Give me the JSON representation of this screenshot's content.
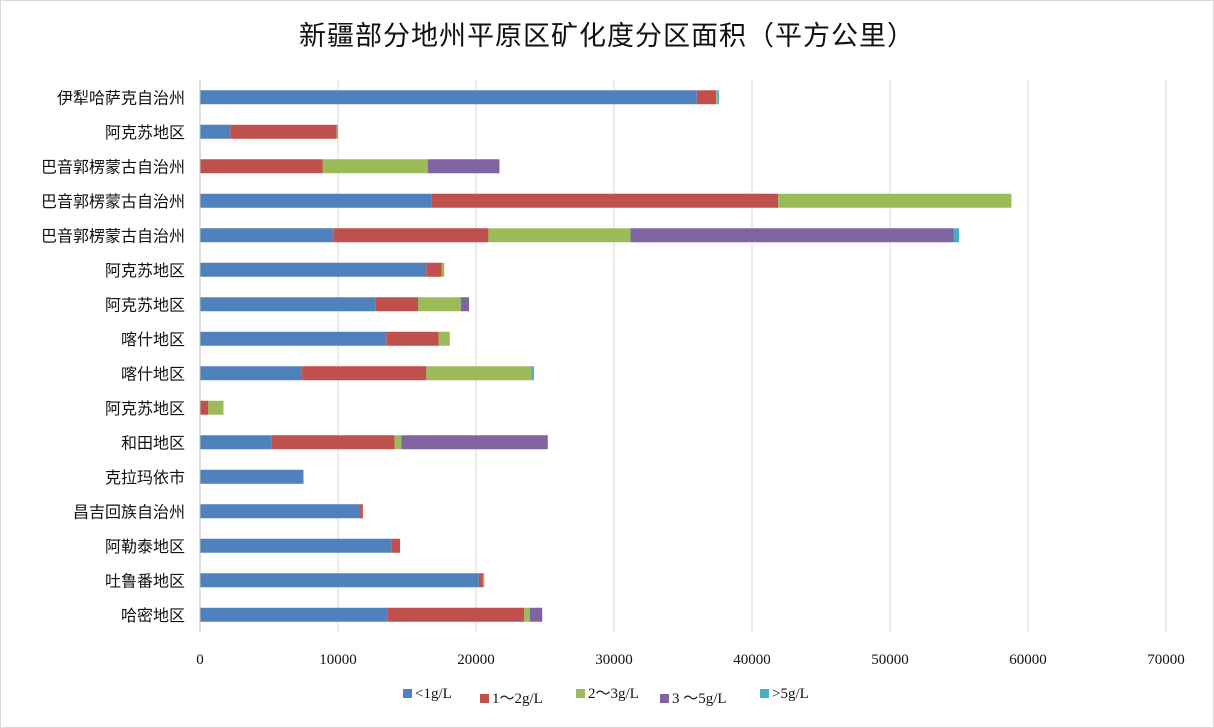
{
  "chart_data": {
    "type": "bar",
    "orientation": "horizontal",
    "stacked": true,
    "title": "新疆部分地州平原区矿化度分区面积（平方公里）",
    "categories": [
      "伊犁哈萨克自治州",
      "阿克苏地区",
      "巴音郭楞蒙古自治州",
      "巴音郭楞蒙古自治州",
      "巴音郭楞蒙古自治州",
      "阿克苏地区",
      "阿克苏地区",
      "喀什地区",
      "喀什地区",
      "阿克苏地区",
      "和田地区",
      "克拉玛依市",
      "昌吉回族自治州",
      "阿勒泰地区",
      "吐鲁番地区",
      "哈密地区"
    ],
    "series": [
      {
        "name": "<1g/L",
        "color": "#4f81bd",
        "values": [
          36000,
          2200,
          0,
          16800,
          9700,
          16400,
          12700,
          13500,
          7400,
          0,
          5200,
          7500,
          11600,
          13900,
          20200,
          13600
        ]
      },
      {
        "name": "1～2g/L",
        "color": "#c0504d",
        "values": [
          1400,
          7700,
          8900,
          25100,
          11200,
          1100,
          3100,
          3800,
          9000,
          600,
          8900,
          0,
          200,
          600,
          300,
          9900
        ]
      },
      {
        "name": "2～3g/L",
        "color": "#9bbb59",
        "values": [
          100,
          100,
          7600,
          16900,
          10300,
          200,
          3100,
          800,
          7600,
          1100,
          500,
          0,
          0,
          0,
          100,
          400
        ]
      },
      {
        "name": "3 ～5g/L",
        "color": "#8064a2",
        "values": [
          0,
          0,
          5200,
          0,
          23400,
          0,
          600,
          0,
          0,
          0,
          10600,
          0,
          0,
          0,
          0,
          900
        ]
      },
      {
        "name": ">5g/L",
        "color": "#4bacc6",
        "values": [
          100,
          0,
          0,
          0,
          400,
          0,
          0,
          0,
          200,
          0,
          0,
          0,
          0,
          0,
          0,
          0
        ]
      }
    ],
    "xlim": [
      0,
      70000
    ],
    "xticks": [
      "0",
      "10000",
      "20000",
      "30000",
      "40000",
      "50000",
      "60000",
      "70000"
    ],
    "grid": true,
    "legend_position": "bottom"
  }
}
